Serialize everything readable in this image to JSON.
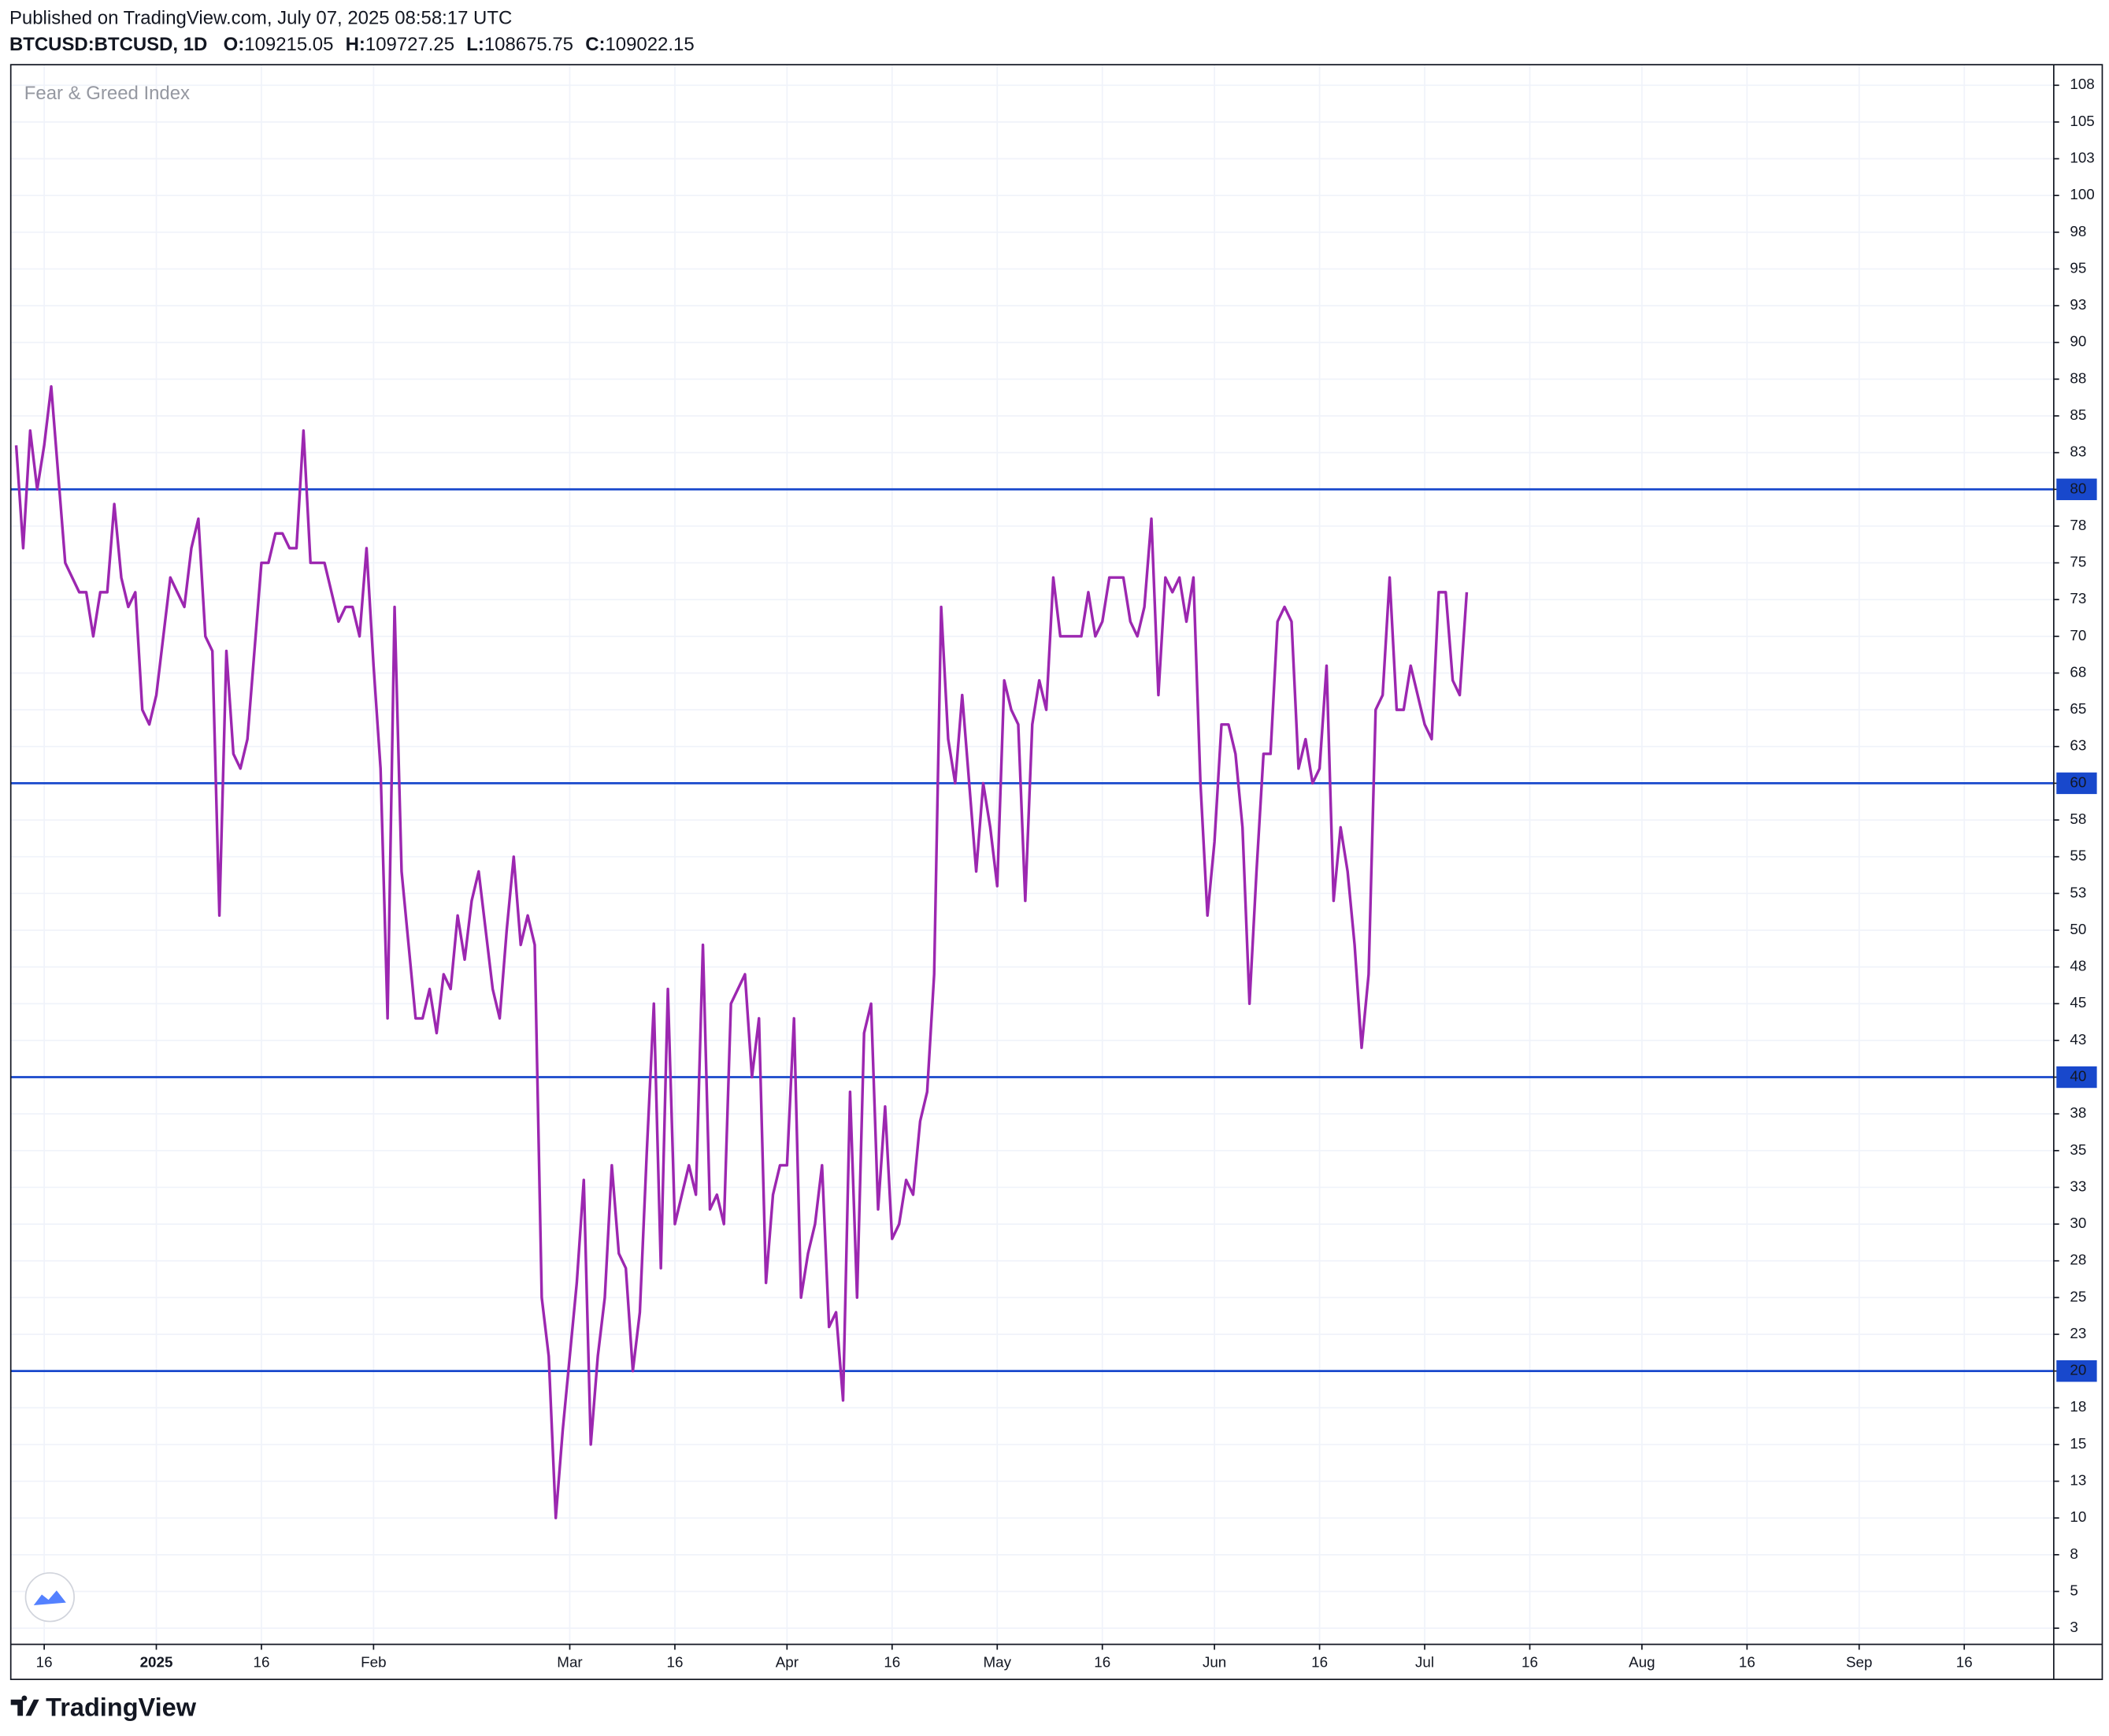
{
  "header": {
    "published": "Published on TradingView.com, July 07, 2025 08:58:17 UTC",
    "symbol": "BTCUSD:BTCUSD, 1D",
    "ohlc": [
      {
        "key": "O:",
        "value": "109215.05"
      },
      {
        "key": "H:",
        "value": "109727.25"
      },
      {
        "key": "L:",
        "value": "108675.75"
      },
      {
        "key": "C:",
        "value": "109022.15"
      }
    ]
  },
  "footer": {
    "brand": "TradingView"
  },
  "chart_data": {
    "type": "line",
    "series": [
      {
        "name": "Fear & Greed Index",
        "color": "#9c27b0",
        "values": [
          83,
          76,
          84,
          80,
          83,
          87,
          81,
          75,
          74,
          73,
          73,
          70,
          73,
          73,
          79,
          74,
          72,
          73,
          65,
          64,
          66,
          70,
          74,
          73,
          72,
          76,
          78,
          70,
          69,
          51,
          69,
          62,
          61,
          63,
          69,
          75,
          75,
          77,
          77,
          76,
          76,
          84,
          75,
          75,
          75,
          73,
          71,
          72,
          72,
          70,
          76,
          68,
          61,
          44,
          72,
          54,
          49,
          44,
          44,
          46,
          43,
          47,
          46,
          51,
          48,
          52,
          54,
          50,
          46,
          44,
          50,
          55,
          49,
          51,
          49,
          25,
          21,
          10,
          16,
          21,
          26,
          33,
          15,
          21,
          25,
          34,
          28,
          27,
          20,
          24,
          35,
          45,
          27,
          46,
          30,
          32,
          34,
          32,
          49,
          31,
          32,
          30,
          45,
          46,
          47,
          40,
          44,
          26,
          32,
          34,
          34,
          44,
          25,
          28,
          30,
          34,
          23,
          24,
          18,
          39,
          25,
          43,
          45,
          31,
          38,
          29,
          30,
          33,
          32,
          37,
          39,
          47,
          72,
          63,
          60,
          66,
          60,
          54,
          60,
          57,
          53,
          67,
          65,
          64,
          52,
          64,
          67,
          65,
          74,
          70,
          70,
          70,
          70,
          73,
          70,
          71,
          74,
          74,
          74,
          71,
          70,
          72,
          78,
          66,
          74,
          73,
          74,
          71,
          74,
          60,
          51,
          56,
          64,
          64,
          62,
          57,
          45,
          54,
          62,
          62,
          71,
          72,
          71,
          61,
          63,
          60,
          61,
          68,
          52,
          57,
          54,
          49,
          42,
          47,
          65,
          66,
          74,
          65,
          65,
          68,
          66,
          64,
          63,
          73,
          73,
          67,
          66,
          73
        ]
      }
    ],
    "xlim": [
      -0.77,
      290.77
    ],
    "xticks": [
      {
        "value": 4,
        "label": "16"
      },
      {
        "value": 20,
        "label": "2025"
      },
      {
        "value": 35,
        "label": "16"
      },
      {
        "value": 51,
        "label": "Feb"
      },
      {
        "value": 79,
        "label": "Mar"
      },
      {
        "value": 94,
        "label": "16"
      },
      {
        "value": 110,
        "label": "Apr"
      },
      {
        "value": 125,
        "label": "16"
      },
      {
        "value": 140,
        "label": "May"
      },
      {
        "value": 155,
        "label": "16"
      },
      {
        "value": 171,
        "label": "Jun"
      },
      {
        "value": 186,
        "label": "16"
      },
      {
        "value": 201,
        "label": "Jul"
      },
      {
        "value": 216,
        "label": "16"
      },
      {
        "value": 232,
        "label": "Aug"
      },
      {
        "value": 247,
        "label": "16"
      },
      {
        "value": 263,
        "label": "Sep"
      },
      {
        "value": 278,
        "label": "16"
      }
    ],
    "ylim": [
      1.4,
      108.9
    ],
    "yticks": [
      {
        "value": 2.5,
        "label": "3"
      },
      5,
      {
        "value": 7.5,
        "label": "8"
      },
      10,
      {
        "value": 12.5,
        "label": "13"
      },
      15,
      {
        "value": 17.5,
        "label": "18"
      },
      20,
      {
        "value": 22.5,
        "label": "23"
      },
      25,
      {
        "value": 27.5,
        "label": "28"
      },
      30,
      {
        "value": 32.5,
        "label": "33"
      },
      35,
      {
        "value": 37.5,
        "label": "38"
      },
      40,
      {
        "value": 42.5,
        "label": "43"
      },
      45,
      {
        "value": 47.5,
        "label": "48"
      },
      50,
      {
        "value": 52.5,
        "label": "53"
      },
      55,
      {
        "value": 57.5,
        "label": "58"
      },
      60,
      {
        "value": 62.5,
        "label": "63"
      },
      65,
      {
        "value": 67.5,
        "label": "68"
      },
      70,
      {
        "value": 72.5,
        "label": "73"
      },
      75,
      {
        "value": 77.5,
        "label": "78"
      },
      80,
      {
        "value": 82.5,
        "label": "83"
      },
      85,
      {
        "value": 87.5,
        "label": "88"
      },
      90,
      {
        "value": 92.5,
        "label": "93"
      },
      95,
      {
        "value": 97.5,
        "label": "98"
      },
      100,
      {
        "value": 102.5,
        "label": "103"
      },
      105,
      {
        "value": 107.5,
        "label": "108"
      }
    ],
    "grid": true,
    "hlines": [
      20,
      40,
      60,
      80
    ],
    "hline_color": "#1848cc"
  }
}
